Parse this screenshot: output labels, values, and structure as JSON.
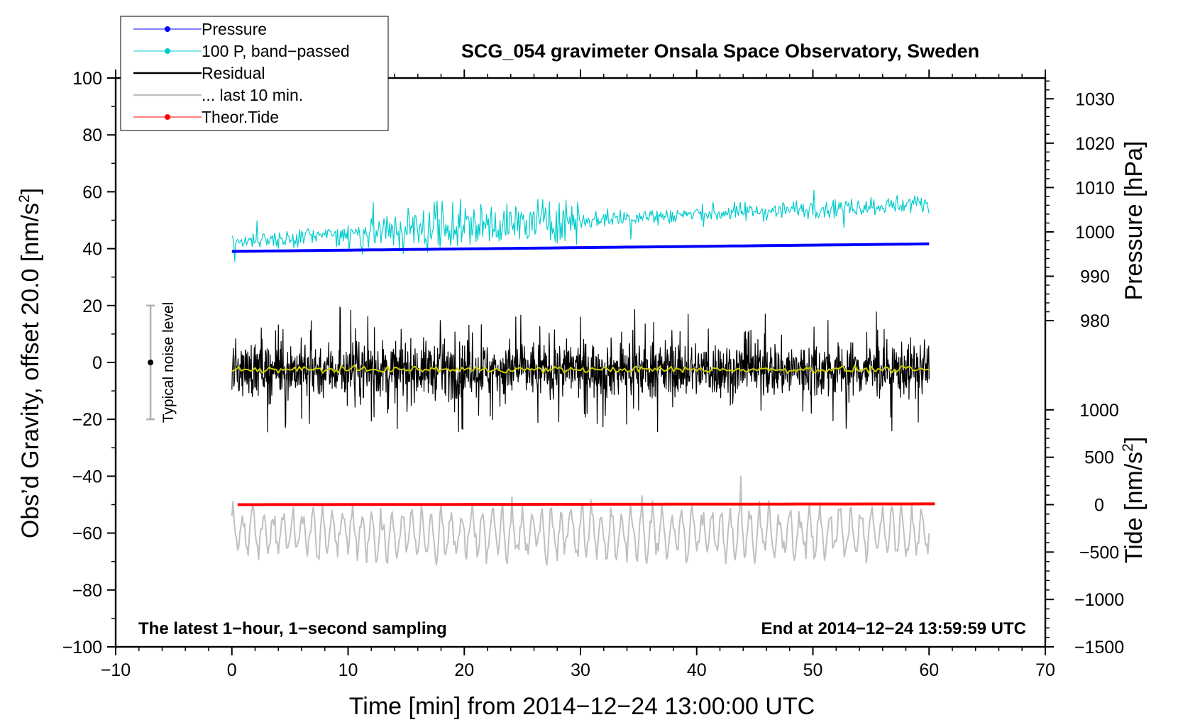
{
  "chart_data": {
    "type": "line",
    "title": "SCG_054 gravimeter Onsala Space Observatory, Sweden",
    "xlabel": "Time [min] from 2014−12−24 13:00:00 UTC",
    "ylabel_left": "Obs’d Gravity, offset 20.0 [nm/s",
    "ylabel_left_sup": "2",
    "ylabel_left_end": "]",
    "ylabel_pressure": "Pressure [hPa]",
    "ylabel_tide": "Tide [nm/s",
    "ylabel_tide_sup": "2",
    "ylabel_tide_end": "]",
    "xlim": [
      -10,
      70
    ],
    "ylim": [
      -100,
      100
    ],
    "x_ticks": [
      -10,
      0,
      10,
      20,
      30,
      40,
      50,
      60,
      70
    ],
    "x_tick_labels": [
      "−10",
      "0",
      "10",
      "20",
      "30",
      "40",
      "50",
      "60",
      "70"
    ],
    "y_ticks": [
      -100,
      -80,
      -60,
      -40,
      -20,
      0,
      20,
      40,
      60,
      80,
      100
    ],
    "y_tick_labels": [
      "−100",
      "−80",
      "−60",
      "−40",
      "−20",
      "0",
      "20",
      "40",
      "60",
      "80",
      "100"
    ],
    "pressure_axis": {
      "ticks": [
        980,
        990,
        1000,
        1010,
        1020,
        1030
      ],
      "tick_labels": [
        "980",
        "990",
        "1000",
        "1010",
        "1020",
        "1030"
      ],
      "map": {
        "hpa_a": 980,
        "y_a": 14.7,
        "hpa_b": 1030,
        "y_b": 92.7
      }
    },
    "tide_axis": {
      "ticks": [
        -1500,
        -1000,
        -500,
        0,
        500,
        1000
      ],
      "tick_labels": [
        "−1500",
        "−1000",
        "−500",
        "0",
        "500",
        "1000"
      ],
      "map": {
        "tide_a": -1500,
        "y_a": -100,
        "tide_b": 0,
        "y_b": -50
      }
    },
    "legend": {
      "placement": "top-left",
      "entries": [
        {
          "label": "Pressure",
          "color": "#0000ff",
          "marker": true
        },
        {
          "label": "100 P, band−passed",
          "color": "#00cccc",
          "marker": true
        },
        {
          "label": "Residual",
          "color": "#000000",
          "marker": false
        },
        {
          "label": "... last 10 min.",
          "color": "#c0c0c0",
          "marker": false
        },
        {
          "label": "Theor.Tide",
          "color": "#ff0000",
          "marker": true
        }
      ]
    },
    "noise_bar": {
      "x": -7,
      "center": 0,
      "low": -20,
      "high": 20,
      "label": "Typical noise level"
    },
    "annotations": {
      "left": "The latest 1−hour, 1−second sampling",
      "right": "End at 2014−12−24 13:59:59 UTC"
    },
    "series": [
      {
        "name": "Pressure",
        "color": "#0000ff",
        "unit": "hPa",
        "x_range": [
          0,
          60
        ],
        "start": 995.6,
        "end": 997.3
      },
      {
        "name": "100 P, band−passed",
        "color": "#00cccc",
        "unit": "nm/s2",
        "x_range": [
          0,
          60
        ],
        "base_start": 42,
        "base_end": 56,
        "amplitude": 5
      },
      {
        "name": "Residual",
        "color": "#000000",
        "unit": "nm/s2",
        "x_range": [
          0,
          60
        ],
        "mean": -2.5,
        "amplitude": 11
      },
      {
        "name": "Residual smoothed",
        "color": "#cccc00",
        "unit": "nm/s2",
        "x_range": [
          0,
          60
        ],
        "mean": -2.5
      },
      {
        "name": "... last 10 min.",
        "color": "#c0c0c0",
        "unit": "nm/s2",
        "x_range": [
          0,
          60
        ],
        "mean": -60,
        "amplitude": 10
      },
      {
        "name": "Theor.Tide",
        "color": "#ff0000",
        "unit": "nm/s2",
        "x_range": [
          0.5,
          60.5
        ],
        "start": 0,
        "end": 8
      }
    ]
  }
}
